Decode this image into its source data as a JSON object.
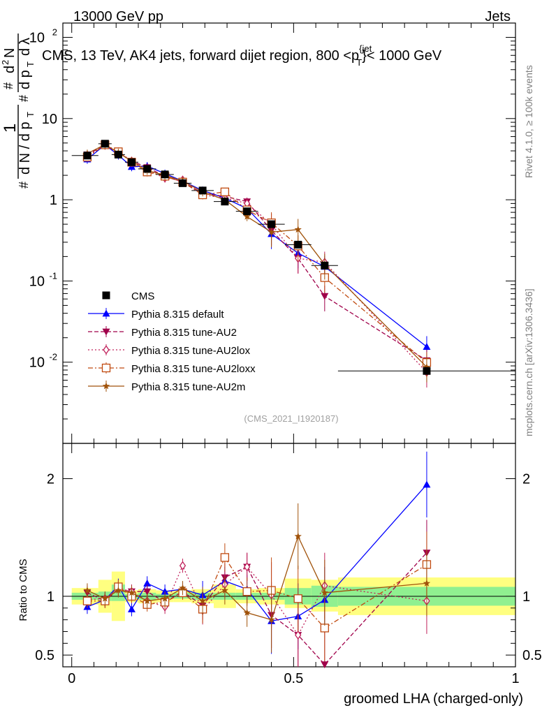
{
  "header": {
    "left": "13000 GeV pp",
    "right": "Jets"
  },
  "side_labels": {
    "rivet": "Rivet 4.1.0, ≥ 100k events",
    "mcplots": "mcplots.cern.ch [arXiv:1306.3436]"
  },
  "chart_data": [
    {
      "id": "main",
      "type": "line",
      "title_prefix": "CMS, 13 TeV, AK4 jets, forward dijet region, 800 <p",
      "title_sup": "{jet",
      "title_sub": "T",
      "title_suffix": "}< 1000 GeV",
      "ylabel": "1/(dN/dpT) d²N/(dpT dλ)",
      "yscale": "log",
      "ylim": [
        0.001,
        150
      ],
      "xlim": [
        -0.02,
        1.0
      ],
      "analysis_id": "(CMS_2021_I1920187)",
      "x": [
        0.035,
        0.075,
        0.105,
        0.135,
        0.17,
        0.21,
        0.25,
        0.295,
        0.345,
        0.395,
        0.45,
        0.51,
        0.57,
        0.8
      ],
      "x_edges": [
        0.0,
        0.06,
        0.09,
        0.12,
        0.15,
        0.19,
        0.23,
        0.27,
        0.32,
        0.37,
        0.42,
        0.48,
        0.54,
        0.6,
        1.0
      ],
      "data": {
        "name": "CMS",
        "values": [
          3.5,
          4.9,
          3.6,
          2.9,
          2.4,
          2.05,
          1.6,
          1.3,
          0.95,
          0.72,
          0.5,
          0.28,
          0.155,
          0.0078
        ]
      },
      "series": [
        {
          "name": "Pythia 8.315 default",
          "color": "#0000ff",
          "marker": "triangle-up",
          "dash": "",
          "values": [
            3.15,
            4.75,
            3.55,
            2.55,
            2.6,
            2.1,
            1.7,
            1.3,
            1.05,
            0.78,
            0.38,
            0.22,
            0.15,
            0.0155
          ]
        },
        {
          "name": "Pythia 8.315 tune-AU2",
          "color": "#a0004a",
          "marker": "triangle-down",
          "dash": "6,3",
          "values": [
            3.6,
            4.7,
            3.8,
            3.0,
            2.5,
            1.95,
            1.65,
            1.2,
            1.1,
            0.95,
            0.42,
            0.19,
            0.065,
            0.0105
          ]
        },
        {
          "name": "Pythia 8.315 tune-AU2lox",
          "color": "#c0205a",
          "marker": "diamond-open",
          "dash": "2,3",
          "values": [
            3.4,
            4.8,
            3.9,
            3.0,
            2.3,
            1.85,
            1.75,
            1.15,
            1.05,
            0.9,
            0.5,
            0.19,
            0.17,
            0.0075
          ]
        },
        {
          "name": "Pythia 8.315 tune-AU2loxx",
          "color": "#c04a10",
          "marker": "square-open",
          "dash": "7,3,2,3",
          "values": [
            3.35,
            4.75,
            3.9,
            2.9,
            2.2,
            1.95,
            1.65,
            1.15,
            1.25,
            0.75,
            0.52,
            0.27,
            0.11,
            0.0099
          ]
        },
        {
          "name": "Pythia 8.315 tune-AU2m",
          "color": "#a0520a",
          "marker": "star",
          "dash": "",
          "values": [
            3.7,
            4.8,
            3.8,
            3.0,
            2.3,
            2.0,
            1.7,
            1.25,
            1.0,
            0.62,
            0.4,
            0.43,
            0.16,
            0.0087
          ]
        }
      ]
    },
    {
      "id": "ratio",
      "type": "line",
      "ylabel": "Ratio to CMS",
      "xlabel": "groomed LHA (charged-only)",
      "ylim": [
        0.4,
        2.3
      ],
      "xlim": [
        -0.02,
        1.0
      ],
      "x_ticks": [
        "0",
        "0.5",
        "1"
      ],
      "y_ticks": [
        "0.5",
        "1",
        "2"
      ],
      "band_inner": [
        0.97,
        0.96,
        0.96,
        0.98,
        0.97,
        0.98,
        0.98,
        0.97,
        0.97,
        0.97,
        0.97,
        0.93,
        0.91,
        0.92
      ],
      "band_inner_hi": [
        1.03,
        1.04,
        1.1,
        1.02,
        1.03,
        1.02,
        1.03,
        1.03,
        1.03,
        1.03,
        1.03,
        1.07,
        1.09,
        1.08
      ],
      "band_outer_lo": [
        0.93,
        0.86,
        0.79,
        0.95,
        0.94,
        0.95,
        0.95,
        0.94,
        0.9,
        0.94,
        0.93,
        0.9,
        0.87,
        0.84
      ],
      "band_outer_hi": [
        1.07,
        1.14,
        1.21,
        1.05,
        1.06,
        1.05,
        1.05,
        1.06,
        1.1,
        1.06,
        1.07,
        1.15,
        1.14,
        1.16
      ],
      "series": [
        {
          "name": "Pythia 8.315 default",
          "color": "#0000ff",
          "marker": "triangle-up",
          "dash": "",
          "values": [
            0.91,
            0.97,
            1.09,
            0.89,
            1.11,
            1.04,
            1.06,
            1.01,
            1.13,
            1.06,
            0.79,
            0.83,
            0.97,
            1.95
          ]
        },
        {
          "name": "Pythia 8.315 tune-AU2",
          "color": "#a0004a",
          "marker": "triangle-down",
          "dash": "6,3",
          "values": [
            1.03,
            0.96,
            1.06,
            1.04,
            1.04,
            0.95,
            1.04,
            0.92,
            1.16,
            1.25,
            0.84,
            0.67,
            0.42,
            1.37
          ]
        },
        {
          "name": "Pythia 8.315 tune-AU2lox",
          "color": "#c0205a",
          "marker": "diamond-open",
          "dash": "2,3",
          "values": [
            0.97,
            0.98,
            1.07,
            1.04,
            0.96,
            0.91,
            1.26,
            0.88,
            1.1,
            1.25,
            1.01,
            0.67,
            1.09,
            0.96
          ]
        },
        {
          "name": "Pythia 8.315 tune-AU2loxx",
          "color": "#c04a10",
          "marker": "square-open",
          "dash": "7,3,2,3",
          "values": [
            0.96,
            0.96,
            1.08,
            1.0,
            0.93,
            0.95,
            1.03,
            0.89,
            1.33,
            1.04,
            1.05,
            0.98,
            0.73,
            1.27
          ]
        },
        {
          "name": "Pythia 8.315 tune-AU2m",
          "color": "#a0520a",
          "marker": "star",
          "dash": "",
          "values": [
            1.05,
            0.98,
            1.05,
            1.03,
            0.96,
            0.98,
            1.07,
            0.96,
            1.05,
            0.86,
            0.8,
            1.51,
            1.03,
            1.11
          ]
        }
      ]
    }
  ]
}
